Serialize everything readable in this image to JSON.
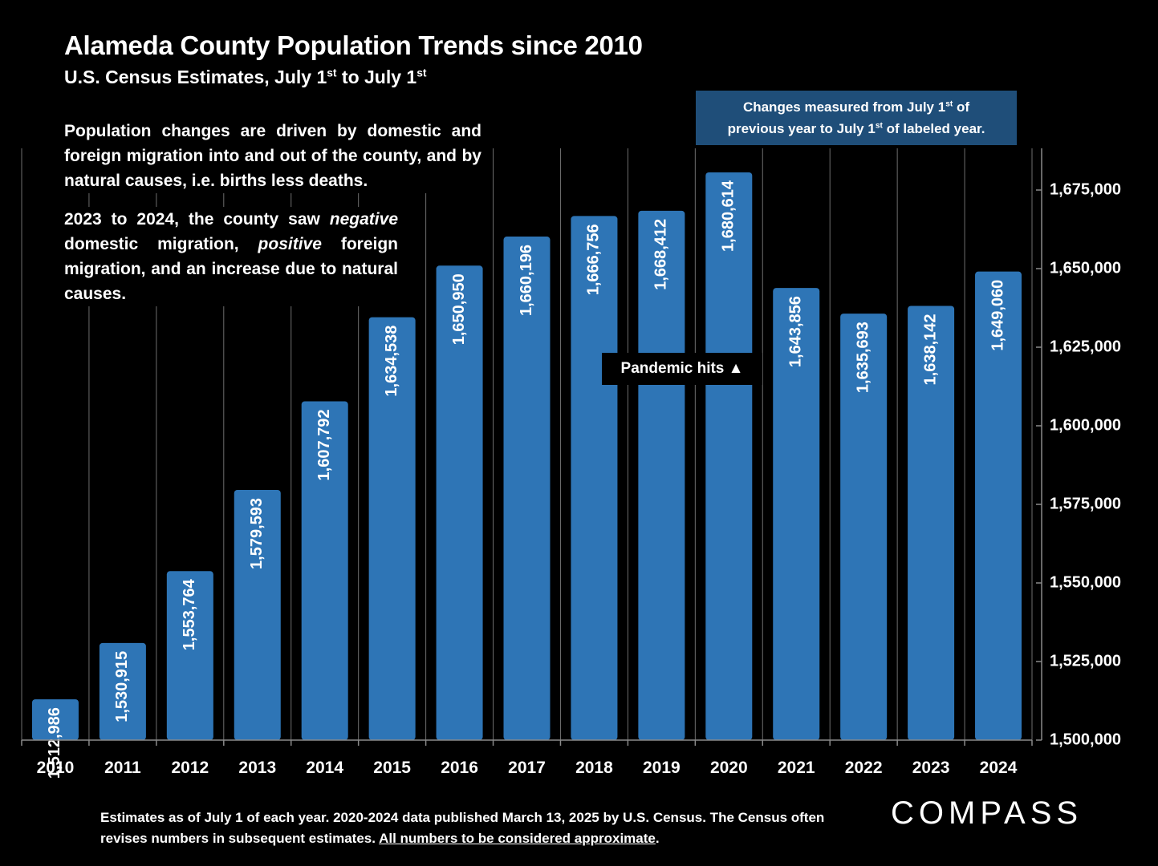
{
  "title": "Alameda County Population Trends since 2010",
  "subtitle": {
    "text": "U.S. Census Estimates, July 1",
    "sup1": "st",
    "mid": " to July 1",
    "sup2": "st"
  },
  "note": {
    "line1a": "Changes measured from July 1",
    "line1sup": "st",
    "line1b": " of",
    "line2a": "previous year to July 1",
    "line2sup": "st",
    "line2b": " of labeled year."
  },
  "description_1": "Population changes are driven by domestic and foreign migration into and out of the county, and by natural causes, i.e. births less deaths.",
  "description_2": {
    "part1": "2023 to 2024, the county saw ",
    "italic1": "negative",
    "part2": " domestic migration, ",
    "italic2": "positive",
    "part3": " foreign migration, and an increase due to natural causes."
  },
  "annotation": "Pandemic hits ▲",
  "footer": {
    "text": "Estimates as of July 1 of each year. 2020-2024 data published March 13, 2025 by U.S. Census. The Census often revises numbers in subsequent estimates. ",
    "underlined": "All numbers to be considered approximate",
    "end": "."
  },
  "logo": "COMPASS",
  "colors": {
    "bar": "#2e75b6",
    "note_bg": "#1f4e79",
    "background": "#000000"
  },
  "chart_data": {
    "type": "bar",
    "categories": [
      "2010",
      "2011",
      "2012",
      "2013",
      "2014",
      "2015",
      "2016",
      "2017",
      "2018",
      "2019",
      "2020",
      "2021",
      "2022",
      "2023",
      "2024"
    ],
    "values": [
      1512986,
      1530915,
      1553764,
      1579593,
      1607792,
      1634538,
      1650950,
      1660196,
      1666756,
      1668412,
      1680614,
      1643856,
      1635693,
      1638142,
      1649060
    ],
    "value_labels": [
      "1,512,986",
      "1,530,915",
      "1,553,764",
      "1,579,593",
      "1,607,792",
      "1,634,538",
      "1,650,950",
      "1,660,196",
      "1,666,756",
      "1,668,412",
      "1,680,614",
      "1,643,856",
      "1,635,693",
      "1,638,142",
      "1,649,060"
    ],
    "y_ticks": [
      1500000,
      1525000,
      1550000,
      1575000,
      1600000,
      1625000,
      1650000,
      1675000
    ],
    "y_tick_labels": [
      "1,500,000",
      "1,525,000",
      "1,550,000",
      "1,575,000",
      "1,600,000",
      "1,625,000",
      "1,650,000",
      "1,675,000"
    ],
    "ylim": [
      1500000,
      1690000
    ],
    "y_axis_side": "right",
    "grid": "vertical-lines"
  }
}
